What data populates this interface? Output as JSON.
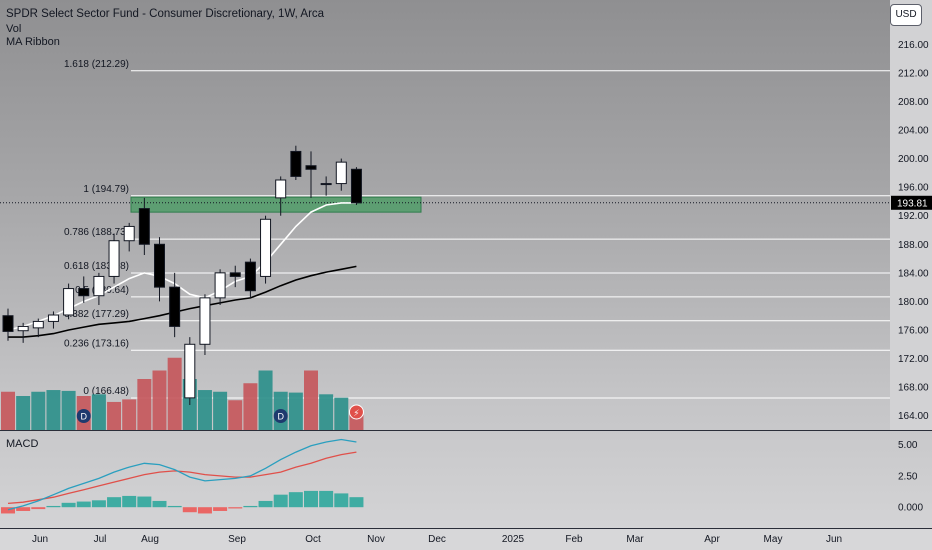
{
  "header": {
    "title": "SPDR Select Sector Fund - Consumer Discretionary, 1W, Arca",
    "indicators": [
      "Vol",
      "MA Ribbon"
    ],
    "currency_button": "USD"
  },
  "lower_pane": {
    "label": "MACD"
  },
  "last_price": "193.81",
  "colors": {
    "up_body": "#ffffff",
    "down_body": "#000000",
    "vol_up": "#2a8f8a",
    "vol_down": "#c5555a",
    "zone": "#3d9a5a",
    "fib_line": "#ffffff",
    "ma_line": "#000000",
    "macd_line": "#2a9fbf",
    "signal_line": "#e0504a",
    "hist_pos": "#26a69a",
    "hist_neg": "#ef5350"
  },
  "chart_data": {
    "type": "candlestick",
    "price_axis": {
      "ticks": [
        "216.00",
        "212.00",
        "208.00",
        "204.00",
        "200.00",
        "196.00",
        "192.00",
        "188.00",
        "184.00",
        "180.00",
        "176.00",
        "172.00",
        "168.00",
        "164.00"
      ],
      "ylim": [
        162,
        218
      ]
    },
    "time_axis": {
      "labels": [
        "Jun",
        "Jul",
        "Aug",
        "Sep",
        "Oct",
        "Nov",
        "Dec",
        "2025",
        "Feb",
        "Mar",
        "Apr",
        "May",
        "Jun"
      ]
    },
    "macd_axis": {
      "ticks": [
        "5.00",
        "2.50",
        "0.000"
      ],
      "ylim": [
        -1.5,
        6
      ]
    },
    "fib_levels": [
      {
        "label": "1.618 (212.29)",
        "value": 212.29
      },
      {
        "label": "1 (194.79)",
        "value": 194.79
      },
      {
        "label": "0.786 (188.73)",
        "value": 188.73
      },
      {
        "label": "0.618 (183.98)",
        "value": 183.98
      },
      {
        "label": "0.5 (180.64)",
        "value": 180.64
      },
      {
        "label": "0.382 (177.29)",
        "value": 177.29
      },
      {
        "label": "0.236 (173.16)",
        "value": 173.16
      },
      {
        "label": "0 (166.48)",
        "value": 166.48
      }
    ],
    "zone": {
      "top": 194.6,
      "bottom": 192.5
    },
    "candles": [
      {
        "o": 178.0,
        "h": 179.0,
        "l": 174.5,
        "c": 175.8
      },
      {
        "o": 175.9,
        "h": 177.0,
        "l": 174.2,
        "c": 176.5
      },
      {
        "o": 176.3,
        "h": 177.6,
        "l": 175.0,
        "c": 177.2
      },
      {
        "o": 177.2,
        "h": 178.6,
        "l": 176.2,
        "c": 178.1
      },
      {
        "o": 178.1,
        "h": 182.5,
        "l": 177.5,
        "c": 181.8
      },
      {
        "o": 181.8,
        "h": 183.5,
        "l": 179.8,
        "c": 180.8
      },
      {
        "o": 180.8,
        "h": 184.0,
        "l": 179.5,
        "c": 183.5
      },
      {
        "o": 183.5,
        "h": 189.5,
        "l": 182.5,
        "c": 188.5
      },
      {
        "o": 188.5,
        "h": 191.0,
        "l": 187.0,
        "c": 190.5
      },
      {
        "o": 193.0,
        "h": 194.5,
        "l": 186.5,
        "c": 188.0
      },
      {
        "o": 188.0,
        "h": 189.0,
        "l": 180.0,
        "c": 182.0
      },
      {
        "o": 182.0,
        "h": 184.0,
        "l": 175.0,
        "c": 176.5
      },
      {
        "o": 166.5,
        "h": 175.0,
        "l": 165.5,
        "c": 174.0
      },
      {
        "o": 174.0,
        "h": 181.0,
        "l": 172.5,
        "c": 180.5
      },
      {
        "o": 180.5,
        "h": 184.5,
        "l": 179.5,
        "c": 184.0
      },
      {
        "o": 184.0,
        "h": 185.0,
        "l": 182.0,
        "c": 183.5
      },
      {
        "o": 185.5,
        "h": 186.0,
        "l": 180.5,
        "c": 181.5
      },
      {
        "o": 183.5,
        "h": 192.0,
        "l": 182.5,
        "c": 191.5
      },
      {
        "o": 194.5,
        "h": 197.5,
        "l": 192.0,
        "c": 197.0
      },
      {
        "o": 201.0,
        "h": 201.8,
        "l": 197.0,
        "c": 197.5
      },
      {
        "o": 199.0,
        "h": 201.0,
        "l": 194.5,
        "c": 198.5
      },
      {
        "o": 196.5,
        "h": 197.5,
        "l": 194.8,
        "c": 196.5
      },
      {
        "o": 196.5,
        "h": 200.0,
        "l": 195.5,
        "c": 199.5
      },
      {
        "o": 198.5,
        "h": 198.8,
        "l": 193.5,
        "c": 193.8
      }
    ],
    "ma_short": [
      176.0,
      176.5,
      177.2,
      178.0,
      179.0,
      180.0,
      180.8,
      182.0,
      183.2,
      184.0,
      183.5,
      182.5,
      181.0,
      180.5,
      181.5,
      182.8,
      183.5,
      185.5,
      188.0,
      190.5,
      192.5,
      193.5,
      193.8,
      193.8
    ],
    "ma_long": [
      175.0,
      175.0,
      175.2,
      175.5,
      176.0,
      176.4,
      176.8,
      177.0,
      177.2,
      177.6,
      178.0,
      178.5,
      179.0,
      179.4,
      179.8,
      180.2,
      180.5,
      181.3,
      182.2,
      183.0,
      183.6,
      184.1,
      184.5,
      184.9
    ],
    "volume": [
      {
        "v": 0.45,
        "up": false
      },
      {
        "v": 0.4,
        "up": true
      },
      {
        "v": 0.45,
        "up": true
      },
      {
        "v": 0.47,
        "up": true
      },
      {
        "v": 0.46,
        "up": true
      },
      {
        "v": 0.4,
        "up": false
      },
      {
        "v": 0.42,
        "up": true
      },
      {
        "v": 0.33,
        "up": false
      },
      {
        "v": 0.36,
        "up": false
      },
      {
        "v": 0.6,
        "up": false
      },
      {
        "v": 0.7,
        "up": false
      },
      {
        "v": 0.85,
        "up": false
      },
      {
        "v": 0.6,
        "up": true
      },
      {
        "v": 0.47,
        "up": true
      },
      {
        "v": 0.45,
        "up": true
      },
      {
        "v": 0.35,
        "up": false
      },
      {
        "v": 0.55,
        "up": false
      },
      {
        "v": 0.7,
        "up": true
      },
      {
        "v": 0.45,
        "up": true
      },
      {
        "v": 0.44,
        "up": true
      },
      {
        "v": 0.7,
        "up": false
      },
      {
        "v": 0.42,
        "up": true
      },
      {
        "v": 0.38,
        "up": true
      },
      {
        "v": 0.25,
        "up": false
      }
    ],
    "macd_line": [
      -0.2,
      0.1,
      0.5,
      1.0,
      1.5,
      1.9,
      2.3,
      2.8,
      3.2,
      3.5,
      3.4,
      3.0,
      2.4,
      2.1,
      2.2,
      2.3,
      2.5,
      3.1,
      3.8,
      4.4,
      4.9,
      5.2,
      5.4,
      5.2
    ],
    "signal_line": [
      0.3,
      0.4,
      0.6,
      0.8,
      1.1,
      1.4,
      1.7,
      2.0,
      2.3,
      2.6,
      2.8,
      2.9,
      2.8,
      2.6,
      2.5,
      2.4,
      2.4,
      2.6,
      2.8,
      3.2,
      3.5,
      3.9,
      4.2,
      4.4
    ],
    "macd_hist": [
      -0.5,
      -0.3,
      -0.15,
      0.1,
      0.35,
      0.45,
      0.55,
      0.8,
      0.9,
      0.85,
      0.5,
      0.1,
      -0.4,
      -0.5,
      -0.3,
      -0.1,
      0.1,
      0.5,
      1.0,
      1.2,
      1.3,
      1.3,
      1.1,
      0.8
    ]
  }
}
